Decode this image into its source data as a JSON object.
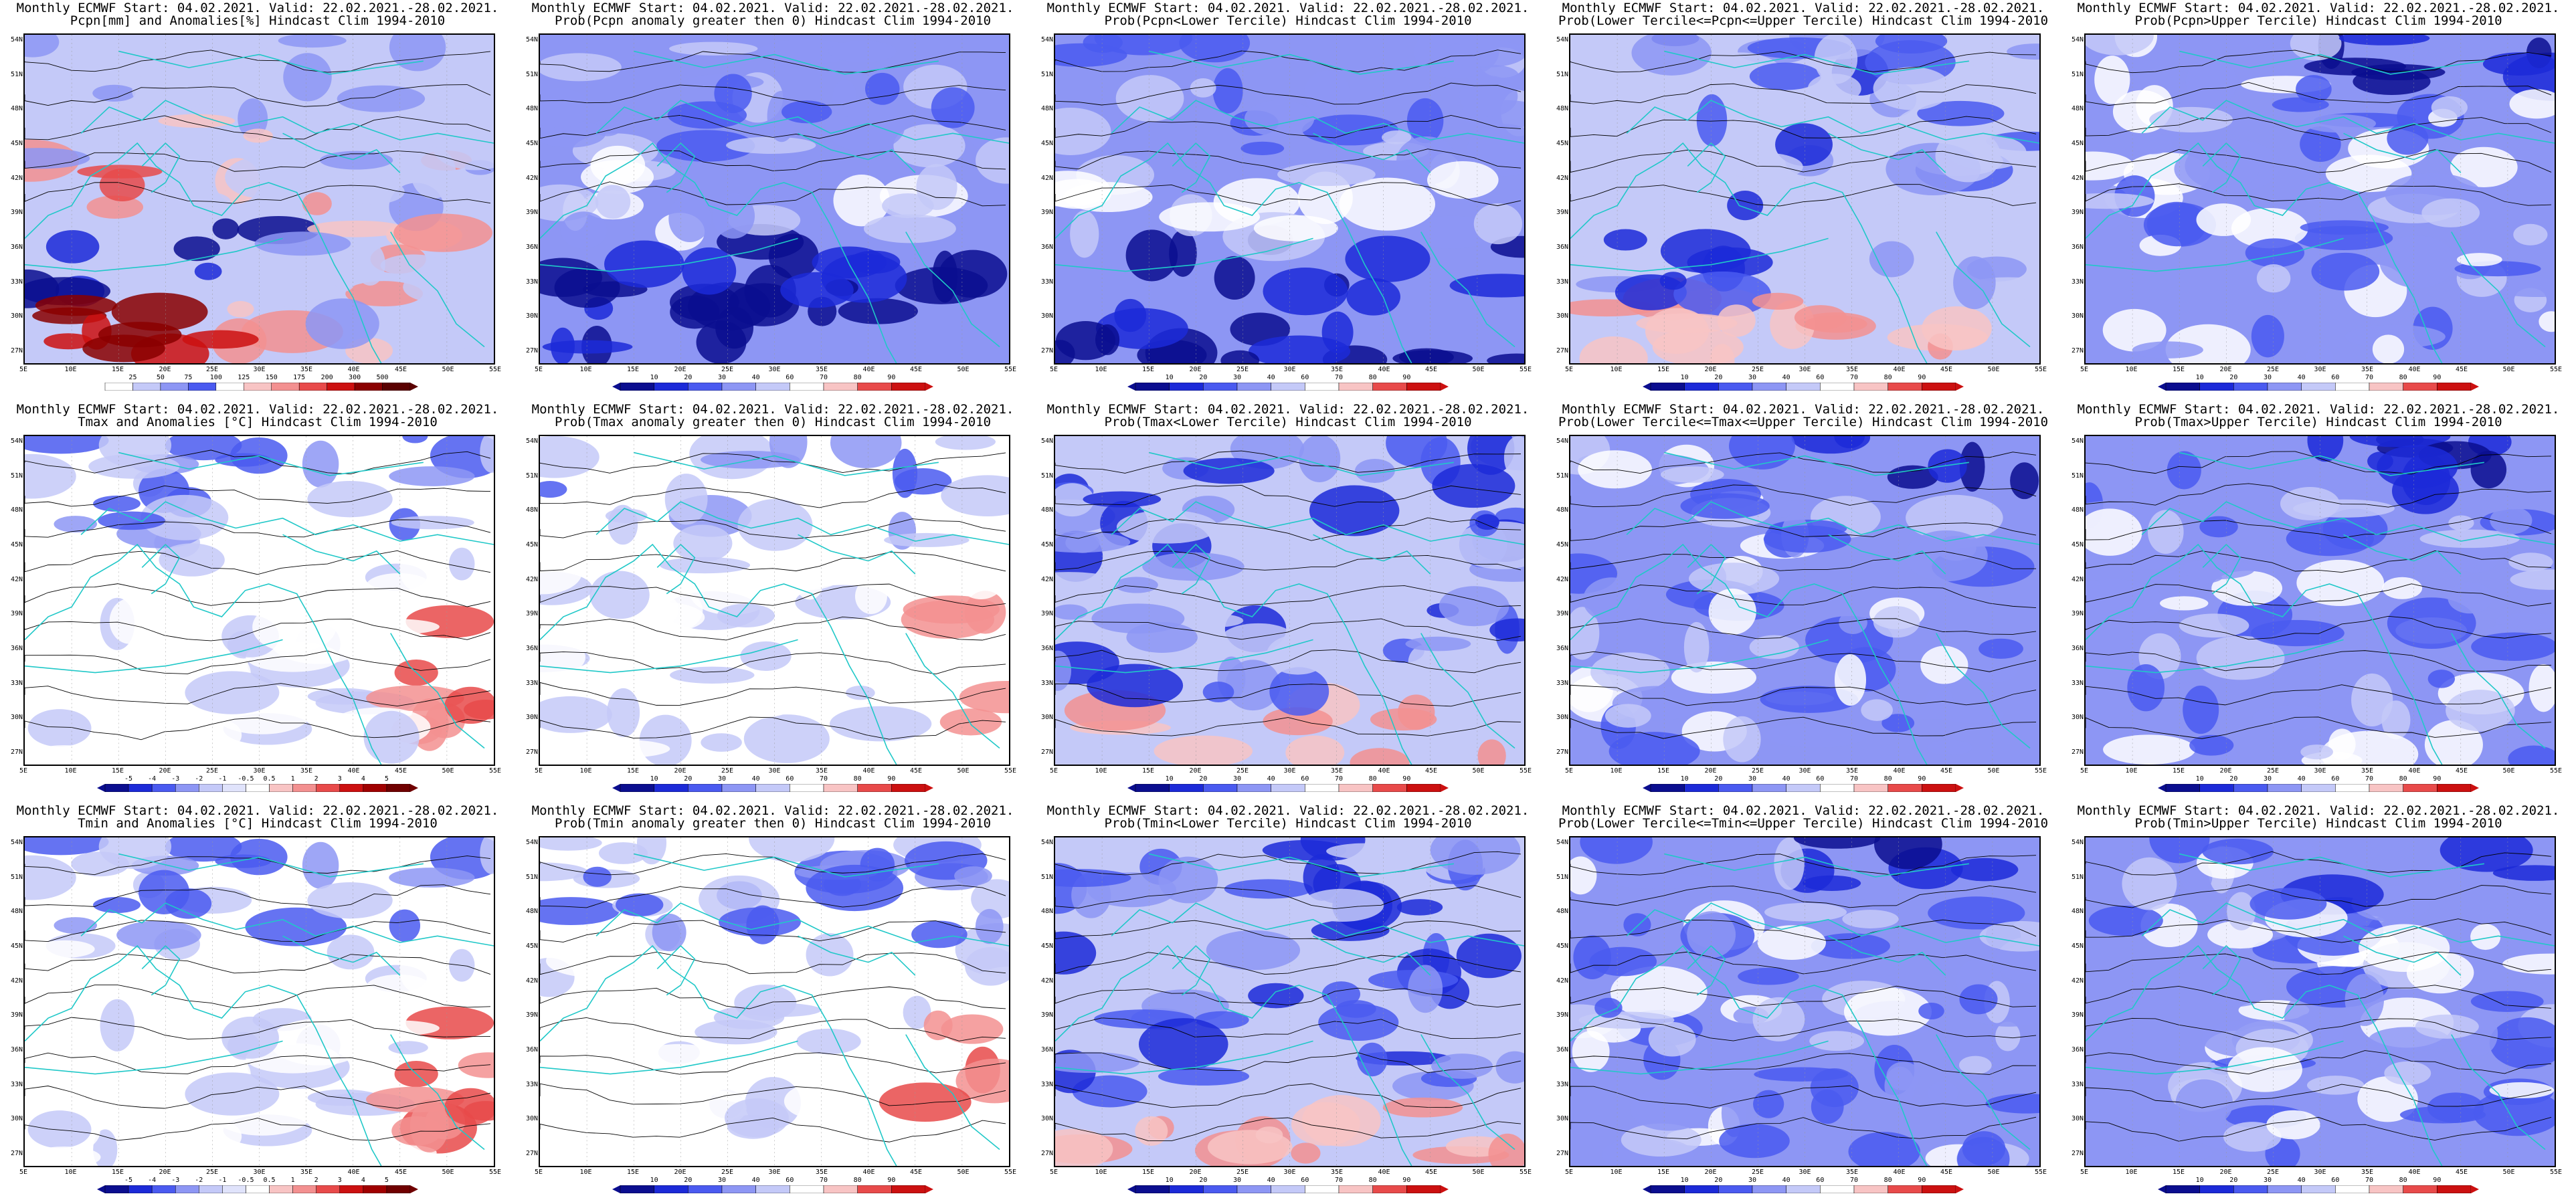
{
  "header_line": "Monthly ECMWF Start: 04.02.2021. Valid: 22.02.2021.-28.02.2021.",
  "lat_labels": [
    "54N",
    "51N",
    "48N",
    "45N",
    "42N",
    "39N",
    "36N",
    "33N",
    "30N",
    "27N"
  ],
  "lon_labels": [
    "5E",
    "10E",
    "15E",
    "20E",
    "25E",
    "30E",
    "35E",
    "40E",
    "45E",
    "50E",
    "55E"
  ],
  "colors": {
    "blue_scale": [
      "#0b0e8f",
      "#1c2ad8",
      "#4a5af0",
      "#8d96f4",
      "#c4c9f8",
      "#ffffff",
      "#f8c4c4",
      "#f39090",
      "#e84a4a",
      "#cc1010",
      "#8a0000"
    ],
    "land_outline": "#20c8c8",
    "contour": "#000000"
  },
  "colorbars": {
    "precip": [
      "25",
      "50",
      "75",
      "100",
      "125",
      "150",
      "175",
      "200",
      "300",
      "500"
    ],
    "prob": [
      "10",
      "20",
      "30",
      "40",
      "60",
      "70",
      "80",
      "90"
    ],
    "temp": [
      "-5",
      "-4",
      "-3",
      "-2",
      "-1",
      "-0.5",
      "0.5",
      "1",
      "2",
      "3",
      "4",
      "5"
    ]
  },
  "panels": [
    {
      "row": 0,
      "col": 0,
      "title": "Pcpn[mm] and Anomalies[%] Hindcast Clim 1994-2010",
      "bar": "precip",
      "style": "precip"
    },
    {
      "row": 0,
      "col": 1,
      "title": "Prob(Pcpn anomaly greater then 0) Hindcast Clim 1994-2010",
      "bar": "prob",
      "style": "pdry"
    },
    {
      "row": 0,
      "col": 2,
      "title": "Prob(Pcpn<Lower Tercile) Hindcast Clim 1994-2010",
      "bar": "prob",
      "style": "pdry"
    },
    {
      "row": 0,
      "col": 3,
      "title": "Prob(Lower Tercile<=Pcpn<=Upper Tercile) Hindcast Clim 1994-2010",
      "bar": "prob",
      "style": "pmid"
    },
    {
      "row": 0,
      "col": 4,
      "title": "Prob(Pcpn>Upper Tercile) Hindcast Clim 1994-2010",
      "bar": "prob",
      "style": "pwet"
    },
    {
      "row": 1,
      "col": 0,
      "title": "Tmax and Anomalies [°C] Hindcast Clim 1994-2010",
      "bar": "temp",
      "style": "temp"
    },
    {
      "row": 1,
      "col": 1,
      "title": "Prob(Tmax anomaly greater then 0) Hindcast Clim 1994-2010",
      "bar": "prob",
      "style": "temp"
    },
    {
      "row": 1,
      "col": 2,
      "title": "Prob(Tmax<Lower Tercile) Hindcast Clim 1994-2010",
      "bar": "prob",
      "style": "pmid"
    },
    {
      "row": 1,
      "col": 3,
      "title": "Prob(Lower Tercile<=Tmax<=Upper Tercile) Hindcast Clim 1994-2010",
      "bar": "prob",
      "style": "pwet"
    },
    {
      "row": 1,
      "col": 4,
      "title": "Prob(Tmax>Upper Tercile) Hindcast Clim 1994-2010",
      "bar": "prob",
      "style": "pwet"
    },
    {
      "row": 2,
      "col": 0,
      "title": "Tmin and Anomalies [°C] Hindcast Clim 1994-2010",
      "bar": "temp",
      "style": "temp"
    },
    {
      "row": 2,
      "col": 1,
      "title": "Prob(Tmin anomaly greater then 0) Hindcast Clim 1994-2010",
      "bar": "prob",
      "style": "temp"
    },
    {
      "row": 2,
      "col": 2,
      "title": "Prob(Tmin<Lower Tercile) Hindcast Clim 1994-2010",
      "bar": "prob",
      "style": "pmid"
    },
    {
      "row": 2,
      "col": 3,
      "title": "Prob(Lower Tercile<=Tmin<=Upper Tercile) Hindcast Clim 1994-2010",
      "bar": "prob",
      "style": "pwet"
    },
    {
      "row": 2,
      "col": 4,
      "title": "Prob(Tmin>Upper Tercile) Hindcast Clim 1994-2010",
      "bar": "prob",
      "style": "pwet"
    }
  ]
}
